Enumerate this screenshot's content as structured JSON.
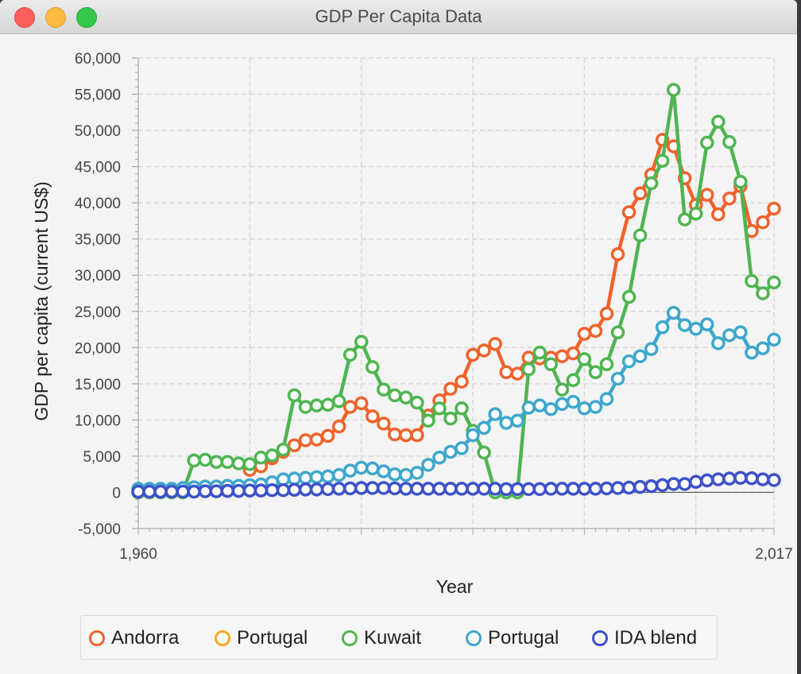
{
  "window": {
    "title": "GDP Per Capita Data"
  },
  "chart_data": {
    "type": "line",
    "xlabel": "Year",
    "ylabel": "GDP per capita (current US$)",
    "xlim": [
      1960,
      2017
    ],
    "ylim": [
      -5000,
      60000
    ],
    "x_tick_labels": [
      "1,960",
      "2,017"
    ],
    "y_tick_labels": [
      "60,000",
      "55,000",
      "50,000",
      "45,000",
      "40,000",
      "35,000",
      "30,000",
      "25,000",
      "20,000",
      "15,000",
      "10,000",
      "5,000",
      "0",
      "-5,000"
    ],
    "grid": true,
    "legend_position": "bottom",
    "x_start": 1960,
    "series": [
      {
        "name": "Andorra",
        "color": "#f0622c",
        "values": [
          null,
          null,
          null,
          null,
          null,
          null,
          null,
          null,
          null,
          null,
          3100,
          3600,
          4700,
          5600,
          6500,
          7200,
          7300,
          7800,
          9100,
          11800,
          12300,
          10500,
          9500,
          8000,
          7900,
          7900,
          10600,
          12700,
          14300,
          15300,
          19000,
          19600,
          20500,
          16600,
          16400,
          18600,
          18500,
          18600,
          18800,
          19200,
          21900,
          22300,
          24700,
          32900,
          38700,
          41300,
          43900,
          48700,
          47800,
          43400,
          39700,
          41100,
          38400,
          40600,
          42300,
          36100,
          37300,
          39200
        ]
      },
      {
        "name": "Portugal",
        "color": "#f7a825",
        "values": [
          null,
          null,
          null,
          null,
          null,
          null,
          null,
          null,
          null,
          null,
          null,
          null,
          null,
          null,
          null,
          null,
          null,
          null,
          null,
          null,
          null,
          null,
          null,
          null,
          null,
          null,
          null,
          null,
          null,
          null,
          null,
          null,
          null,
          null,
          null,
          null,
          null,
          null,
          null,
          null,
          null,
          null,
          null,
          null,
          null,
          null,
          null,
          null,
          null,
          null,
          null,
          null,
          null,
          null,
          null,
          null,
          null,
          null
        ]
      },
      {
        "name": "Kuwait",
        "color": "#4fb551",
        "values": [
          0,
          0,
          0,
          0,
          0,
          4400,
          4500,
          4200,
          4200,
          4000,
          3900,
          4800,
          5100,
          5900,
          13400,
          11800,
          12000,
          12100,
          12600,
          19000,
          20800,
          17300,
          14200,
          13400,
          13100,
          12400,
          9900,
          11600,
          10200,
          11600,
          8500,
          5500,
          0,
          0,
          0,
          17000,
          19300,
          17700,
          14200,
          15500,
          18400,
          16600,
          17700,
          22100,
          27000,
          35500,
          42700,
          45800,
          55600,
          37700,
          38500,
          48300,
          51200,
          48400,
          42900,
          29200,
          27500,
          29000
        ]
      },
      {
        "name": "Portugal",
        "color": "#3ea7cc",
        "values": [
          500,
          500,
          500,
          500,
          600,
          700,
          800,
          800,
          900,
          900,
          1000,
          1100,
          1400,
          1800,
          1900,
          2000,
          2100,
          2200,
          2400,
          3000,
          3400,
          3300,
          2900,
          2500,
          2400,
          2700,
          3800,
          4800,
          5600,
          6100,
          7900,
          8900,
          10800,
          9600,
          9900,
          11700,
          12000,
          11500,
          12200,
          12500,
          11600,
          11800,
          12900,
          15700,
          18100,
          18800,
          19800,
          22800,
          24800,
          23100,
          22600,
          23200,
          20600,
          21700,
          22100,
          19300,
          19900,
          21100
        ]
      },
      {
        "name": "IDA blend",
        "color": "#3d52c8",
        "values": [
          100,
          100,
          100,
          100,
          100,
          100,
          150,
          150,
          200,
          200,
          250,
          250,
          300,
          300,
          350,
          400,
          400,
          450,
          500,
          550,
          600,
          600,
          600,
          550,
          500,
          500,
          500,
          500,
          500,
          500,
          500,
          500,
          500,
          450,
          450,
          450,
          450,
          500,
          500,
          500,
          500,
          500,
          550,
          600,
          650,
          750,
          850,
          1000,
          1150,
          1150,
          1450,
          1650,
          1800,
          1900,
          2000,
          1950,
          1800,
          1700
        ]
      }
    ]
  }
}
